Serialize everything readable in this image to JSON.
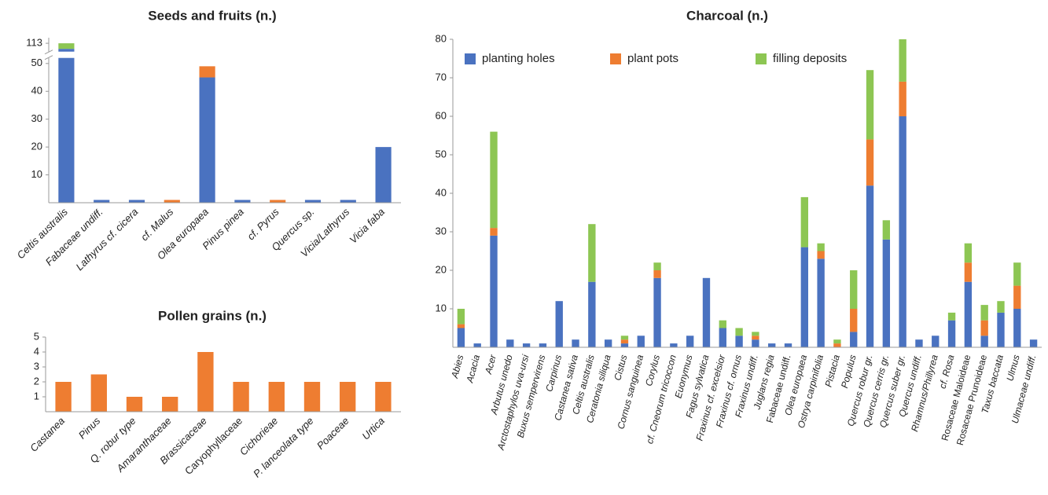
{
  "chart_data": [
    {
      "type": "stacked_bar",
      "title": "Seeds and fruits (n.)",
      "categories": [
        "Celtis australis",
        "Fabaceae undiff.",
        "Lathyrus cf. cicera",
        "cf. Malus",
        "Olea europaea",
        "Pinus pinea",
        "cf. Pyrus",
        "Quercus sp.",
        "Vicia/Lathyrus",
        "Vicia faba"
      ],
      "series": [
        {
          "color": "#4a72c0",
          "values": [
            111,
            1,
            1,
            0,
            45,
            1,
            0,
            1,
            1,
            20
          ]
        },
        {
          "color": "#ee7d31",
          "values": [
            0,
            0,
            0,
            1,
            4,
            0,
            1,
            0,
            0,
            0
          ]
        },
        {
          "color": "#8dc653",
          "values": [
            2,
            0,
            0,
            0,
            0,
            0,
            0,
            0,
            0,
            0
          ]
        }
      ],
      "ylim": [
        0,
        115
      ],
      "axis_break": [
        52,
        110
      ],
      "yticks": [
        10,
        20,
        30,
        40,
        50,
        113
      ]
    },
    {
      "type": "bar",
      "title": "Pollen grains (n.)",
      "categories": [
        "Castanea",
        "Pinus",
        "Q. robur type",
        "Amaranthaceae",
        "Brassicaceae",
        "Caryophyllaceae",
        "Cichorieae",
        "P. lanceolata type",
        "Poaceae",
        "Urtica"
      ],
      "values": [
        2,
        2.5,
        1,
        1,
        4,
        2,
        2,
        2,
        2,
        2
      ],
      "color": "#ee7d31",
      "ylim": [
        0,
        5
      ],
      "yticks": [
        1,
        2,
        3,
        4,
        5
      ]
    },
    {
      "type": "stacked_bar",
      "title": "Charcoal (n.)",
      "categories": [
        "Abies",
        "Acacia",
        "Acer",
        "Arbutus unedo",
        "Arctostaphylos uva-ursi",
        "Buxus sempervirens",
        "Carpinus",
        "Castanea sativa",
        "Celtis australis",
        "Ceratonia siliqua",
        "Cistus",
        "Cornus sanguinea",
        "Corylus",
        "cf. Cneorum tricoccon",
        "Euonymus",
        "Fagus sylvatica",
        "Fraxinus cf. excelsior",
        "Fraxinus cf. ornus",
        "Fraxinus undiff.",
        "Juglans regia",
        "Fabaceae undiff.",
        "Olea europaea",
        "Ostrya carpinifolia",
        "Pistacia",
        "Populus",
        "Quercus robur gr.",
        "Quercus cerris gr.",
        "Quercus suber gr.",
        "Quercus undiff.",
        "Rhamnus/Phillyrea",
        "cf. Rosa",
        "Rosaceae Maloideae",
        "Rosaceae Prunoideae",
        "Taxus baccata",
        "Ulmus",
        "Ulmaceae undiff."
      ],
      "series": [
        {
          "name": "planting holes",
          "color": "#4a72c0",
          "values": [
            5,
            1,
            29,
            2,
            1,
            1,
            12,
            2,
            17,
            2,
            1,
            3,
            18,
            1,
            3,
            18,
            5,
            3,
            2,
            1,
            1,
            26,
            23,
            0,
            4,
            42,
            28,
            60,
            2,
            3,
            7,
            17,
            3,
            9,
            10,
            2
          ]
        },
        {
          "name": "plant pots",
          "color": "#ee7d31",
          "values": [
            1,
            0,
            2,
            0,
            0,
            0,
            0,
            0,
            0,
            0,
            1,
            0,
            2,
            0,
            0,
            0,
            0,
            0,
            1,
            0,
            0,
            0,
            2,
            1,
            6,
            12,
            0,
            9,
            0,
            0,
            0,
            5,
            4,
            0,
            6,
            0
          ]
        },
        {
          "name": "filling deposits",
          "color": "#8dc653",
          "values": [
            4,
            0,
            25,
            0,
            0,
            0,
            0,
            0,
            15,
            0,
            1,
            0,
            2,
            0,
            0,
            0,
            2,
            2,
            1,
            0,
            0,
            13,
            2,
            1,
            10,
            18,
            5,
            11,
            0,
            0,
            2,
            5,
            4,
            3,
            6,
            0
          ]
        }
      ],
      "ylim": [
        0,
        80
      ],
      "yticks": [
        10,
        20,
        30,
        40,
        50,
        60,
        70,
        80
      ],
      "legend": "upper left"
    }
  ]
}
